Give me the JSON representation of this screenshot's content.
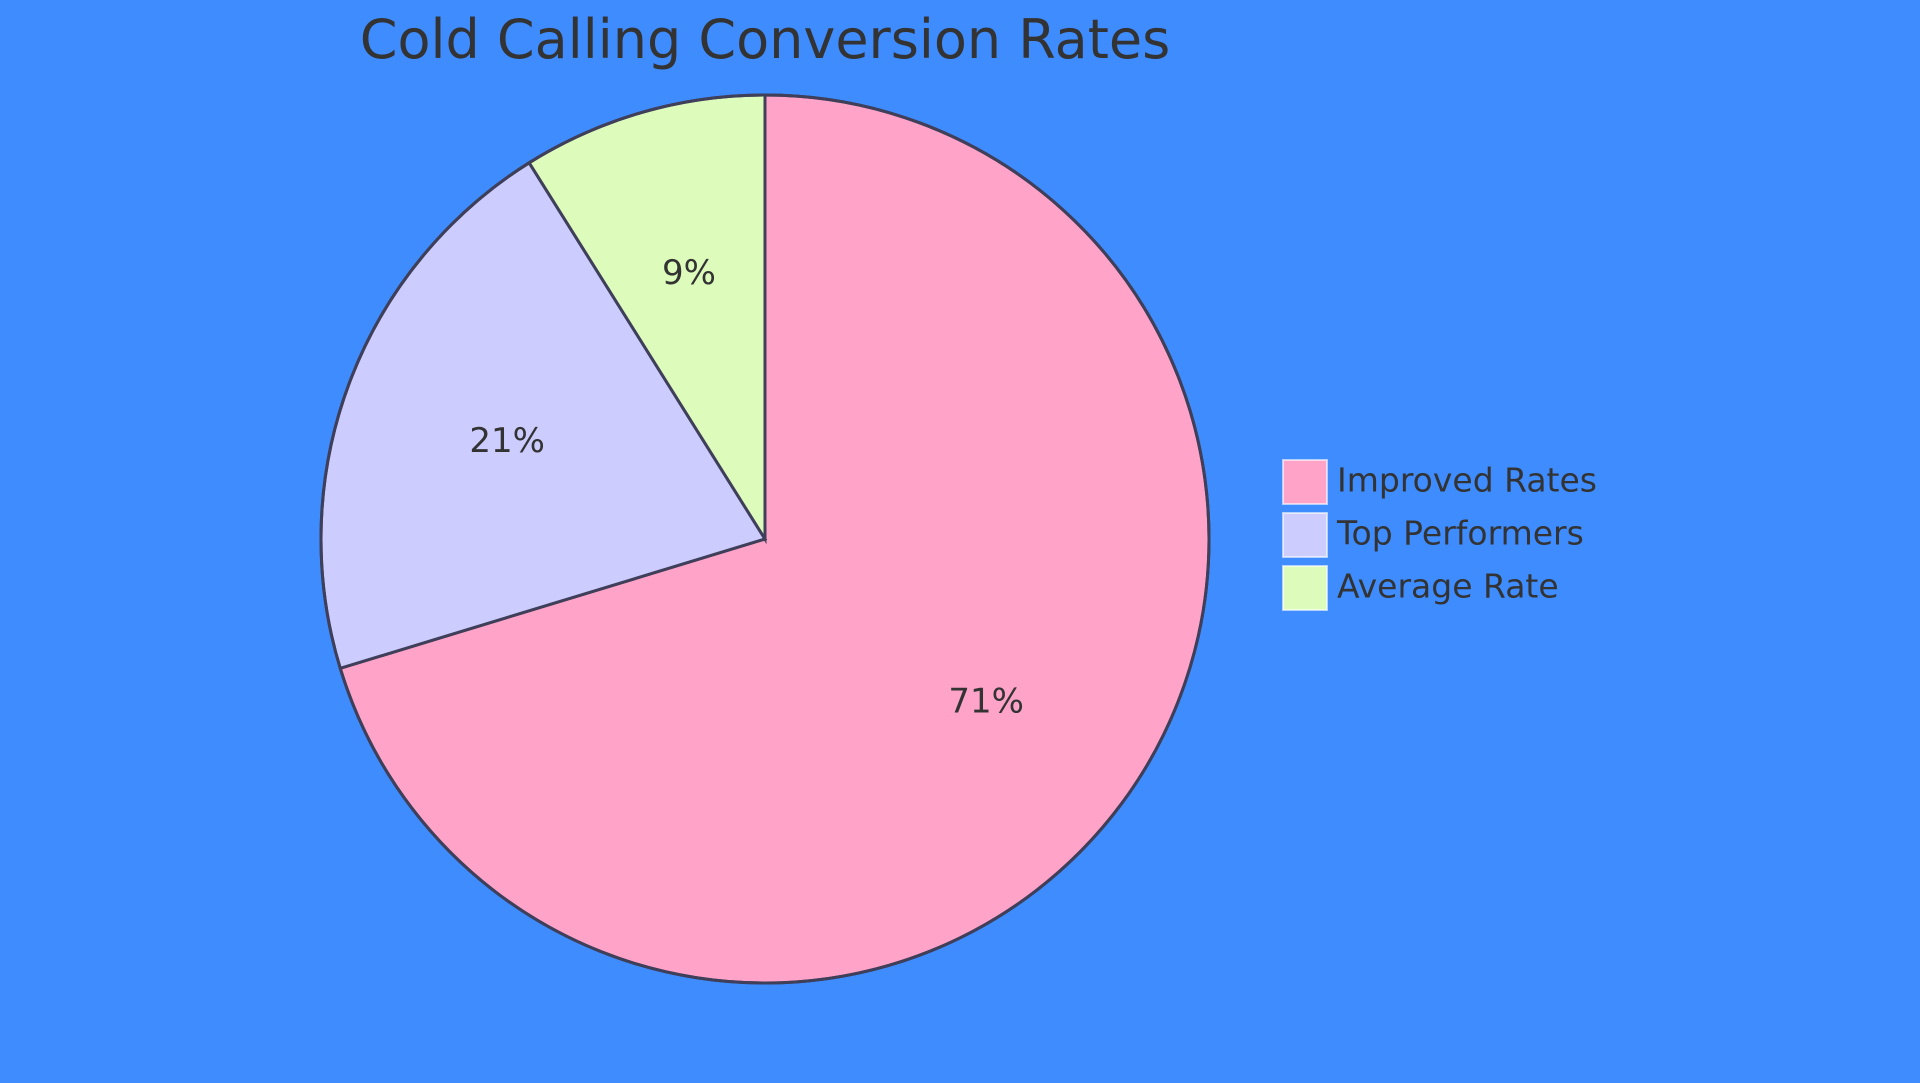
{
  "chart_data": {
    "type": "pie",
    "title": "Cold Calling Conversion Rates",
    "slices": [
      {
        "name": "Improved Rates",
        "value": 71,
        "label": "71%",
        "color": "#ffa3c9"
      },
      {
        "name": "Top Performers",
        "value": 21,
        "label": "21%",
        "color": "#ccccff"
      },
      {
        "name": "Average Rate",
        "value": 9,
        "label": "9%",
        "color": "#ddfcbc"
      }
    ],
    "legend_position": "right",
    "start_angle": "top (12 o'clock)",
    "direction": "clockwise",
    "background_color": "#3f8cff",
    "outline_color": "#3f3f5a"
  }
}
